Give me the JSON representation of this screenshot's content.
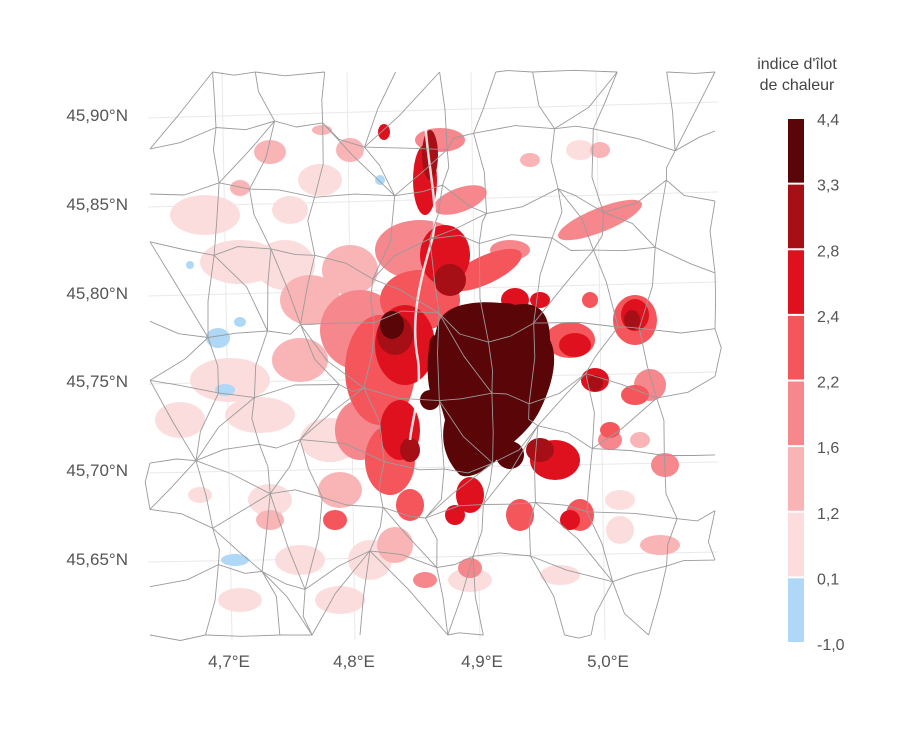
{
  "map": {
    "y_ticks": [
      "45,90°N",
      "45,85°N",
      "45,80°N",
      "45,75°N",
      "45,70°N",
      "45,65°N"
    ],
    "x_ticks": [
      "4,7°E",
      "4,8°E",
      "4,9°E",
      "5,0°E"
    ]
  },
  "legend": {
    "title_line1": "indice d'îlot",
    "title_line2": "de chaleur",
    "labels": [
      "4,4",
      "3,3",
      "2,8",
      "2,4",
      "2,2",
      "1,6",
      "1,2",
      "0,1",
      "-1,0"
    ],
    "colors": [
      "#5a0508",
      "#a50f15",
      "#e0111f",
      "#f4565c",
      "#f6878c",
      "#f9b4b6",
      "#fcdcdc",
      "#aed8f5"
    ]
  },
  "colors": {
    "background": "#ffffff",
    "boundary": "#9b9b9b",
    "grid": "#e6e6e6"
  }
}
